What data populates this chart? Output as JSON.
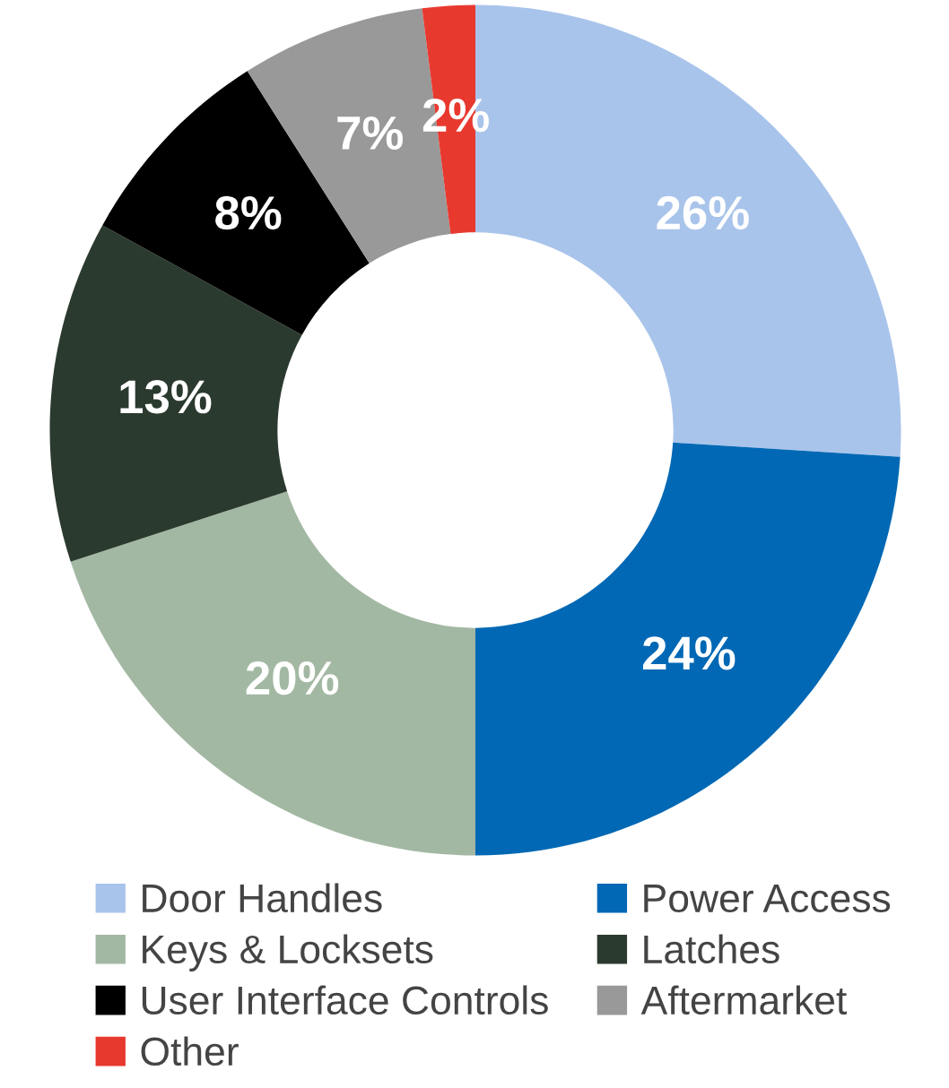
{
  "chart_data": {
    "type": "donut",
    "categories": [
      "Door Handles",
      "Power Access",
      "Keys & Locksets",
      "Latches",
      "User Interface Controls",
      "Aftermarket",
      "Other"
    ],
    "values": [
      26,
      24,
      20,
      13,
      8,
      7,
      2
    ],
    "colors": [
      "#a9c4eb",
      "#0068b4",
      "#a3b8a3",
      "#2b3a2e",
      "#000000",
      "#999999",
      "#e8392f"
    ],
    "value_labels": [
      "26%",
      "24%",
      "20%",
      "13%",
      "8%",
      "7%",
      "2%"
    ],
    "legend": "bottom"
  }
}
